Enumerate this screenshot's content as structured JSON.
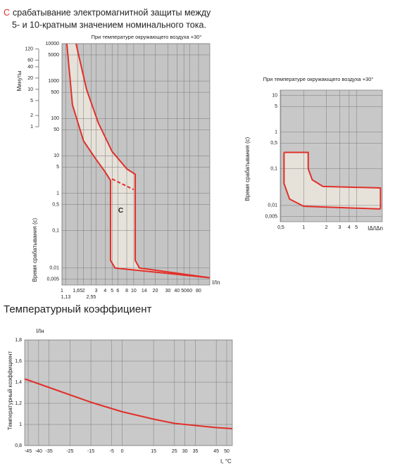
{
  "chart_data": [
    {
      "type": "line",
      "title_mark": "С",
      "title_lines": [
        "срабатывание электромагнитной защиты между",
        "5- и 10-кратным значением номинального тока."
      ],
      "subtitle": "При температуре окружающего воздуха +30°",
      "xlabel": "I/In",
      "ylabel": "Время срабатывания (с)",
      "y2label": "Минуты",
      "xlog": true,
      "ylog": true,
      "grid": true,
      "background": "#c4c4c4",
      "band_color": "#e6e2da",
      "xlim": [
        1,
        115
      ],
      "ylim": [
        0.0035,
        10000
      ],
      "y2lim": [
        5.83e-05,
        166.67
      ],
      "xticks": [
        1,
        {
          "value": 1.65,
          "label": "1,65"
        },
        2,
        3,
        4,
        5,
        6,
        8,
        10,
        14,
        20,
        30,
        40,
        50,
        60,
        80
      ],
      "xticks_second_row": [
        {
          "value": 1.13,
          "label": "1,13"
        },
        {
          "value": 2.55,
          "label": "2,55"
        }
      ],
      "yticks": [
        {
          "value": 0.005,
          "label": "0,005"
        },
        {
          "value": 0.01,
          "label": "0,01"
        },
        {
          "value": 0.1,
          "label": "0,1"
        },
        {
          "value": 0.5,
          "label": "0,5"
        },
        1,
        5,
        10,
        50,
        100,
        500,
        1000,
        5000,
        10000
      ],
      "y2ticks": [
        1,
        2,
        5,
        10,
        20,
        40,
        60,
        120
      ],
      "annotation": {
        "text": "С",
        "x": 6.6,
        "y": 0.34
      },
      "series": [
        {
          "color": "#e0302a",
          "x": [
            1.17,
            1.4,
            2,
            2.9,
            4,
            4.75,
            4.75,
            5.5,
            115
          ],
          "values": [
            10000,
            230,
            25,
            8.7,
            3.7,
            2.2,
            0.016,
            0.01,
            0.0055
          ]
        },
        {
          "color": "#e0302a",
          "x": [
            1.57,
            2.2,
            3.2,
            5,
            8,
            10.5,
            10.5,
            12,
            115
          ],
          "values": [
            10000,
            600,
            77,
            13,
            4.5,
            3.2,
            0.016,
            0.01,
            0.0055
          ]
        },
        {
          "color": "#e0302a",
          "dash": true,
          "x": [
            5,
            10
          ],
          "values": [
            2.4,
            1.25
          ]
        }
      ]
    },
    {
      "type": "line",
      "subtitle": "При температуре окружающего воздуха +30°",
      "xlabel": "IΔ/IΔn",
      "ylabel": "Время срабатывания (с)",
      "xlog": true,
      "ylog": true,
      "grid": true,
      "background": "#c8c8c8",
      "band_color": "#e6e2da",
      "xlim": [
        0.49,
        11
      ],
      "ylim": [
        0.0036,
        14
      ],
      "xticks": [
        {
          "value": 0.5,
          "label": "0,5"
        },
        1,
        2,
        3,
        4,
        5
      ],
      "yticks": [
        {
          "value": 0.005,
          "label": "0,005"
        },
        {
          "value": 0.01,
          "label": "0,01"
        },
        {
          "value": 0.1,
          "label": "0,1"
        },
        {
          "value": 0.5,
          "label": "0,5"
        },
        1,
        5,
        10
      ],
      "series": [
        {
          "color": "#e0302a",
          "x": [
            0.55,
            0.55,
            0.65,
            1,
            10.4
          ],
          "values": [
            0.28,
            0.04,
            0.015,
            0.0095,
            0.008
          ]
        },
        {
          "color": "#e0302a",
          "x": [
            0.55,
            1.15,
            1.15,
            1.3,
            1.8,
            10.4,
            10.4
          ],
          "values": [
            0.28,
            0.28,
            0.1,
            0.05,
            0.033,
            0.03,
            0.008
          ]
        }
      ]
    },
    {
      "type": "line",
      "title": "Температурный коэффициент",
      "xlabel": "t, °C",
      "ylabel": "Температурный коэффициент",
      "yunit": "I/Iн",
      "xlog": false,
      "ylog": false,
      "grid": true,
      "background": "#c9c9c9",
      "xlim": [
        -46.7,
        52.7
      ],
      "ylim": [
        0.8,
        1.8
      ],
      "xticks": [
        -45,
        -40,
        -35,
        -25,
        -15,
        -5,
        0,
        15,
        25,
        30,
        35,
        45,
        50
      ],
      "yticks": [
        {
          "value": 0.8,
          "label": "0,8"
        },
        1,
        {
          "value": 1.2,
          "label": "1,2"
        },
        {
          "value": 1.4,
          "label": "1,4"
        },
        {
          "value": 1.6,
          "label": "1,6"
        },
        {
          "value": 1.8,
          "label": "1,8"
        }
      ],
      "series": [
        {
          "color": "#e0302a",
          "x": [
            -46.7,
            -45,
            -35,
            -25,
            -15,
            -5,
            0,
            15,
            25,
            35,
            45,
            52.7
          ],
          "values": [
            1.43,
            1.42,
            1.35,
            1.28,
            1.21,
            1.15,
            1.12,
            1.05,
            1.01,
            0.99,
            0.97,
            0.96
          ]
        }
      ]
    }
  ]
}
